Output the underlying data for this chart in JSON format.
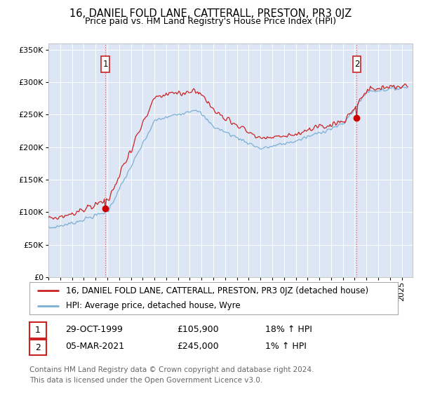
{
  "title": "16, DANIEL FOLD LANE, CATTERALL, PRESTON, PR3 0JZ",
  "subtitle": "Price paid vs. HM Land Registry's House Price Index (HPI)",
  "ylim": [
    0,
    360000
  ],
  "xlim_start": 1995.0,
  "xlim_end": 2025.5,
  "plot_bg_color": "#dce6f5",
  "grid_color": "#ffffff",
  "sale1_date": 1999.83,
  "sale1_price": 105900,
  "sale2_date": 2021.18,
  "sale2_price": 245000,
  "legend_line1": "16, DANIEL FOLD LANE, CATTERALL, PRESTON, PR3 0JZ (detached house)",
  "legend_line2": "HPI: Average price, detached house, Wyre",
  "table_row1": [
    "1",
    "29-OCT-1999",
    "£105,900",
    "18% ↑ HPI"
  ],
  "table_row2": [
    "2",
    "05-MAR-2021",
    "£245,000",
    "1% ↑ HPI"
  ],
  "footer": "Contains HM Land Registry data © Crown copyright and database right 2024.\nThis data is licensed under the Open Government Licence v3.0.",
  "hpi_color": "#7ab0d4",
  "price_color": "#cc2222",
  "sale_dot_color": "#cc0000",
  "vline_color": "#cc4444",
  "title_fontsize": 10.5,
  "subtitle_fontsize": 9,
  "tick_fontsize": 8,
  "legend_fontsize": 8.5,
  "table_fontsize": 9,
  "footer_fontsize": 7.5
}
